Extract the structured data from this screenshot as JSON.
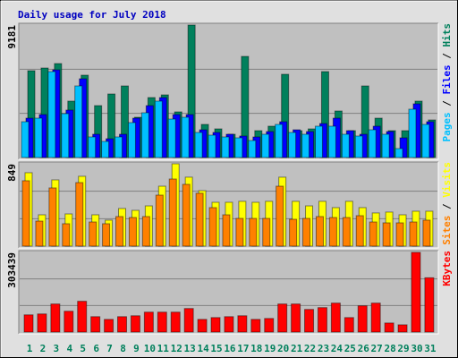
{
  "title": "Daily usage for July 2018",
  "legend_separator": "/",
  "chart_data": [
    {
      "type": "bar",
      "ylim": [
        0,
        9181
      ],
      "yticks": [
        9181
      ],
      "series": [
        {
          "name": "Pages",
          "color": "#00c0ff",
          "values": [
            2481,
            2729,
            5955,
            3040,
            4962,
            1427,
            1117,
            1427,
            2419,
            3102,
            3908,
            2667,
            2791,
            1737,
            1551,
            1427,
            1365,
            1179,
            1613,
            2295,
            1737,
            1613,
            2171,
            2171,
            1613,
            1489,
            1923,
            1613,
            620,
            3350,
            2295
          ]
        },
        {
          "name": "Files",
          "color": "#0000ff",
          "values": [
            2729,
            2978,
            6079,
            3288,
            5459,
            1613,
            1303,
            1613,
            2729,
            3598,
            4156,
            2978,
            2978,
            1923,
            1737,
            1613,
            1489,
            1427,
            1799,
            2481,
            1923,
            1799,
            2357,
            2729,
            1861,
            1613,
            2171,
            1799,
            1365,
            3722,
            2481
          ]
        },
        {
          "name": "Hits",
          "color": "#00805c",
          "values": [
            6017,
            6203,
            6513,
            3908,
            5707,
            3598,
            4404,
            4962,
            2791,
            4156,
            4342,
            3164,
            9181,
            2295,
            1985,
            1613,
            7009,
            1861,
            2171,
            5769,
            1861,
            1985,
            5955,
            3226,
            1861,
            4962,
            2729,
            1861,
            1861,
            3908,
            2605
          ]
        }
      ]
    },
    {
      "type": "bar",
      "ylim": [
        0,
        849
      ],
      "yticks": [
        849
      ],
      "series": [
        {
          "name": "Sites",
          "color": "#ff8000",
          "values": [
            674,
            258,
            600,
            231,
            655,
            249,
            231,
            305,
            295,
            305,
            526,
            692,
            637,
            545,
            397,
            323,
            286,
            286,
            286,
            618,
            277,
            286,
            305,
            295,
            295,
            314,
            249,
            240,
            240,
            249,
            268
          ]
        },
        {
          "name": "Visits",
          "color": "#ffff00",
          "values": [
            757,
            323,
            683,
            332,
            720,
            323,
            268,
            388,
            369,
            415,
            618,
            849,
            711,
            572,
            452,
            452,
            462,
            452,
            462,
            711,
            462,
            415,
            462,
            397,
            462,
            397,
            342,
            351,
            323,
            360,
            360
          ]
        }
      ]
    },
    {
      "type": "bar",
      "ylim": [
        0,
        303439
      ],
      "yticks": [
        303439
      ],
      "categories": [
        "1",
        "2",
        "3",
        "4",
        "5",
        "6",
        "7",
        "8",
        "9",
        "10",
        "11",
        "12",
        "13",
        "14",
        "15",
        "16",
        "17",
        "18",
        "19",
        "20",
        "21",
        "22",
        "23",
        "24",
        "25",
        "26",
        "27",
        "28",
        "29",
        "30",
        "31"
      ],
      "category_colors": [
        "#00805c",
        "#00805c",
        "#00805c",
        "#00805c",
        "#00805c",
        "#00805c",
        "#00805c",
        "#00805c",
        "#00805c",
        "#00805c",
        "#00805c",
        "#00805c",
        "#00805c",
        "#00805c",
        "#00805c",
        "#00805c",
        "#00805c",
        "#00805c",
        "#00805c",
        "#00805c",
        "#00805c",
        "#00805c",
        "#00805c",
        "#00805c",
        "#00805c",
        "#00805c",
        "#00805c",
        "#00805c",
        "#00805c",
        "#00805c",
        "#00805c"
      ],
      "series": [
        {
          "name": "KBytes",
          "color": "#ff0000",
          "values": [
            65512,
            68960,
            106888,
            79304,
            117232,
            58616,
            48272,
            58616,
            62064,
            75856,
            75856,
            75856,
            89648,
            48272,
            55168,
            58616,
            62064,
            48272,
            51720,
            106888,
            106888,
            86200,
            93096,
            110336,
            55168,
            99992,
            110336,
            34480,
            27584,
            303439,
            206880
          ]
        }
      ]
    }
  ]
}
